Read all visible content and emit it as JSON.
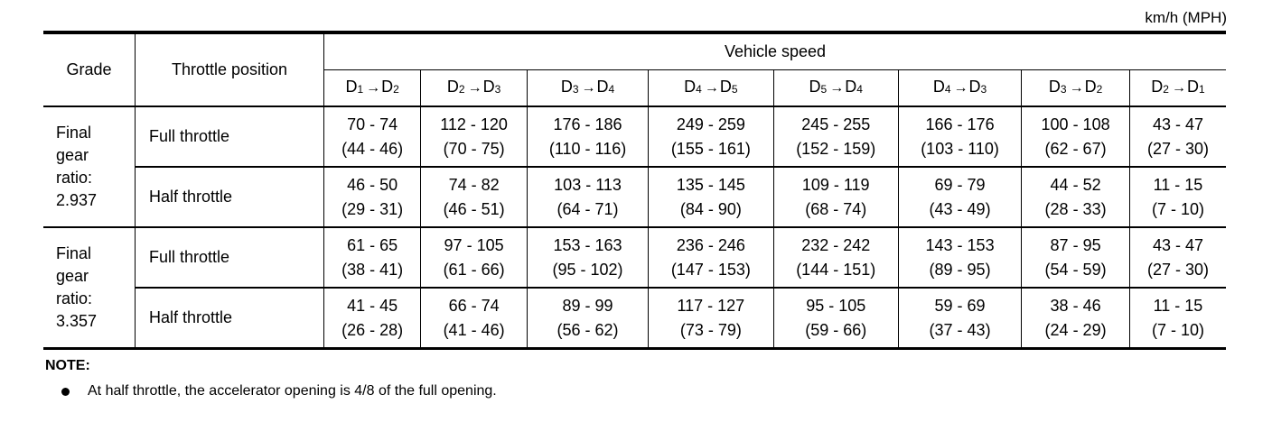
{
  "unit_label": "km/h (MPH)",
  "headers": {
    "grade": "Grade",
    "throttle": "Throttle position",
    "vehicle_speed": "Vehicle speed",
    "shifts": [
      {
        "from": "D",
        "from_n": "1",
        "arrow": "→",
        "to": "D",
        "to_n": "2"
      },
      {
        "from": "D",
        "from_n": "2",
        "arrow": "→",
        "to": "D",
        "to_n": "3"
      },
      {
        "from": "D",
        "from_n": "3",
        "arrow": "→",
        "to": "D",
        "to_n": "4"
      },
      {
        "from": "D",
        "from_n": "4",
        "arrow": "→",
        "to": "D",
        "to_n": "5"
      },
      {
        "from": "D",
        "from_n": "5",
        "arrow": "→",
        "to": "D",
        "to_n": "4"
      },
      {
        "from": "D",
        "from_n": "4",
        "arrow": "→",
        "to": "D",
        "to_n": "3"
      },
      {
        "from": "D",
        "from_n": "3",
        "arrow": "→",
        "to": "D",
        "to_n": "2"
      },
      {
        "from": "D",
        "from_n": "2",
        "arrow": "→",
        "to": "D",
        "to_n": "1"
      }
    ]
  },
  "groups": [
    {
      "grade_lines": [
        "Final",
        "gear",
        "ratio:",
        "2.937"
      ],
      "rows": [
        {
          "throttle": "Full throttle",
          "kmh": [
            "70 - 74",
            "112 - 120",
            "176 - 186",
            "249 - 259",
            "245 - 255",
            "166 - 176",
            "100 - 108",
            "43 - 47"
          ],
          "mph": [
            "(44 - 46)",
            "(70 - 75)",
            "(110 - 116)",
            "(155 - 161)",
            "(152 - 159)",
            "(103 - 110)",
            "(62 - 67)",
            "(27 - 30)"
          ]
        },
        {
          "throttle": "Half throttle",
          "kmh": [
            "46 - 50",
            "74 - 82",
            "103 - 113",
            "135 - 145",
            "109 - 119",
            "69 - 79",
            "44 - 52",
            "11 - 15"
          ],
          "mph": [
            "(29 - 31)",
            "(46 - 51)",
            "(64 - 71)",
            "(84 - 90)",
            "(68 - 74)",
            "(43 - 49)",
            "(28 - 33)",
            "(7 - 10)"
          ]
        }
      ]
    },
    {
      "grade_lines": [
        "Final",
        "gear",
        "ratio:",
        "3.357"
      ],
      "rows": [
        {
          "throttle": "Full throttle",
          "kmh": [
            "61 - 65",
            "97 - 105",
            "153 - 163",
            "236 - 246",
            "232 - 242",
            "143 - 153",
            "87 - 95",
            "43 - 47"
          ],
          "mph": [
            "(38 - 41)",
            "(61 - 66)",
            "(95 - 102)",
            "(147 - 153)",
            "(144 - 151)",
            "(89 - 95)",
            "(54 - 59)",
            "(27 - 30)"
          ]
        },
        {
          "throttle": "Half throttle",
          "kmh": [
            "41 - 45",
            "66 - 74",
            "89 - 99",
            "117 - 127",
            "95 - 105",
            "59 - 69",
            "38 - 46",
            "11 - 15"
          ],
          "mph": [
            "(26 - 28)",
            "(41 - 46)",
            "(56 - 62)",
            "(73 - 79)",
            "(59 - 66)",
            "(37 - 43)",
            "(24 - 29)",
            "(7 - 10)"
          ]
        }
      ]
    }
  ],
  "note": {
    "title": "NOTE:",
    "items": [
      "At half throttle, the accelerator opening is 4/8 of the full opening."
    ]
  }
}
